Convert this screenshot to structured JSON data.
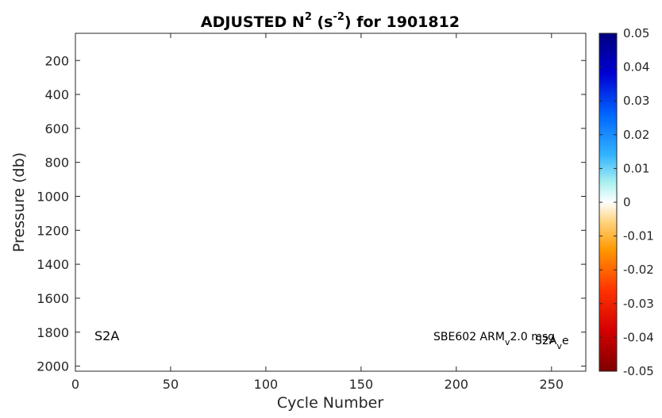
{
  "chart_data": {
    "type": "heatmap",
    "title": "ADJUSTED N",
    "title_sup_1": "2",
    "title_mid": " (s",
    "title_sup_2": "-2",
    "title_end": ") for 1901812",
    "xlabel": "Cycle Number",
    "ylabel": "Pressure (db)",
    "xlim": [
      0,
      268
    ],
    "ylim": [
      2030,
      40
    ],
    "y_reversed": true,
    "xticks": [
      0,
      50,
      100,
      150,
      200,
      250
    ],
    "yticks": [
      200,
      400,
      600,
      800,
      1000,
      1200,
      1400,
      1600,
      1800,
      2000
    ],
    "values": [],
    "colorbar": {
      "min": -0.05,
      "max": 0.05,
      "ticks": [
        0.05,
        0.04,
        0.03,
        0.02,
        0.01,
        0,
        -0.01,
        -0.02,
        -0.03,
        -0.04,
        -0.05
      ],
      "tick_labels": [
        "0.05",
        "0.04",
        "0.03",
        "0.02",
        "0.01",
        "0",
        "-0.01",
        "-0.02",
        "-0.03",
        "-0.04",
        "-0.05"
      ],
      "colormap": "jet-like (dark red to dark blue, white at zero)"
    },
    "annotations": {
      "left": {
        "text": "S2A",
        "x": 10,
        "y": 1820
      },
      "right": {
        "text_1": "SBE602 ARM",
        "sub_1": "v",
        "text_2": "2.0 ",
        "overlap_a": "msg",
        "overlap_b": "S2A",
        "sub_2": "v",
        "text_3": "e",
        "x": 188,
        "y": 1820
      }
    },
    "grid": false,
    "legend": "none"
  }
}
